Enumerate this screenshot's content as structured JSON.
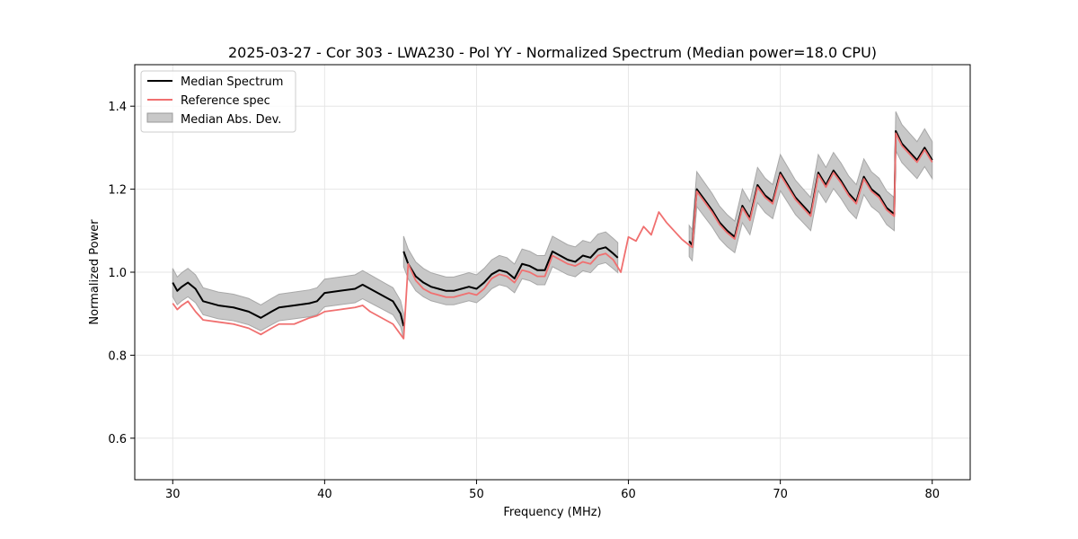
{
  "chart_data": {
    "type": "line",
    "title": "2025-03-27 - Cor 303 - LWA230 - Pol YY - Normalized Spectrum (Median power=18.0 CPU)",
    "xlabel": "Frequency (MHz)",
    "ylabel": "Normalized Power",
    "xlim": [
      27.5,
      82.5
    ],
    "ylim": [
      0.5,
      1.5
    ],
    "xticks": [
      30,
      40,
      50,
      60,
      70,
      80
    ],
    "yticks": [
      0.6,
      0.8,
      1.0,
      1.2,
      1.4
    ],
    "xtick_labels": [
      "30",
      "40",
      "50",
      "60",
      "70",
      "80"
    ],
    "ytick_labels": [
      "0.6",
      "0.8",
      "1.0",
      "1.2",
      "1.4"
    ],
    "grid": true,
    "legend_location": "upper-left",
    "legend": [
      {
        "label": "Median Spectrum",
        "kind": "line",
        "color": "#000000"
      },
      {
        "label": "Reference spec",
        "kind": "line",
        "color": "#f07070"
      },
      {
        "label": "Median Abs. Dev.",
        "kind": "fill",
        "color": "#c8c8c8"
      }
    ],
    "mad_fraction": 0.035,
    "series": [
      {
        "name": "Median Spectrum",
        "color": "#000000",
        "segments": [
          {
            "x": [
              30.0,
              30.3,
              30.6,
              31.0,
              31.5,
              32.0,
              33.0,
              34.0,
              35.0,
              35.8,
              36.5,
              37.0,
              38.0,
              39.0,
              39.5,
              40.0,
              41.0,
              42.0,
              42.5,
              43.0,
              44.0,
              44.5,
              45.0,
              45.2
            ],
            "y": [
              0.975,
              0.955,
              0.965,
              0.975,
              0.96,
              0.93,
              0.92,
              0.915,
              0.905,
              0.89,
              0.905,
              0.915,
              0.92,
              0.925,
              0.93,
              0.95,
              0.955,
              0.96,
              0.97,
              0.96,
              0.94,
              0.93,
              0.9,
              0.87
            ]
          },
          {
            "x": [
              45.2,
              45.5,
              46.0,
              46.5,
              47.0,
              47.5,
              48.0,
              48.5,
              49.0,
              49.5,
              50.0,
              50.5,
              51.0,
              51.5,
              52.0,
              52.5,
              53.0,
              53.5,
              54.0,
              54.5,
              55.0,
              55.5,
              56.0,
              56.5,
              57.0,
              57.5,
              58.0,
              58.5,
              59.0,
              59.3
            ],
            "y": [
              1.05,
              1.02,
              0.99,
              0.975,
              0.965,
              0.96,
              0.955,
              0.955,
              0.96,
              0.965,
              0.96,
              0.975,
              0.995,
              1.005,
              1.0,
              0.985,
              1.02,
              1.015,
              1.005,
              1.005,
              1.05,
              1.04,
              1.03,
              1.025,
              1.04,
              1.035,
              1.055,
              1.06,
              1.045,
              1.035
            ]
          },
          {
            "x": [
              64.0,
              64.2,
              64.5,
              65.0,
              65.5,
              66.0,
              66.5,
              67.0,
              67.5,
              68.0,
              68.5,
              69.0,
              69.5,
              70.0,
              70.5,
              71.0,
              71.5,
              72.0,
              72.5,
              73.0,
              73.5,
              74.0,
              74.5,
              75.0,
              75.5,
              76.0,
              76.5,
              77.0,
              77.5,
              77.6,
              78.0,
              78.5,
              79.0,
              79.5,
              80.0
            ],
            "y": [
              1.075,
              1.065,
              1.2,
              1.175,
              1.15,
              1.12,
              1.1,
              1.085,
              1.16,
              1.13,
              1.21,
              1.185,
              1.17,
              1.24,
              1.21,
              1.18,
              1.16,
              1.14,
              1.24,
              1.21,
              1.245,
              1.22,
              1.19,
              1.17,
              1.23,
              1.2,
              1.185,
              1.155,
              1.14,
              1.34,
              1.31,
              1.29,
              1.27,
              1.3,
              1.27
            ]
          }
        ]
      },
      {
        "name": "Reference spec",
        "color": "#f07070",
        "segments": [
          {
            "x": [
              30.0,
              30.3,
              30.6,
              31.0,
              31.5,
              32.0,
              33.0,
              34.0,
              35.0,
              35.8,
              36.5,
              37.0,
              38.0,
              39.0,
              39.5,
              40.0,
              41.0,
              42.0,
              42.5,
              43.0,
              44.0,
              44.5,
              45.0,
              45.2,
              45.5,
              46.0,
              46.5,
              47.0,
              47.5,
              48.0,
              48.5,
              49.0,
              49.5,
              50.0,
              50.5,
              51.0,
              51.5,
              52.0,
              52.5,
              53.0,
              53.5,
              54.0,
              54.5,
              55.0,
              55.5,
              56.0,
              56.5,
              57.0,
              57.5,
              58.0,
              58.5,
              59.0,
              59.5,
              60.0,
              60.5,
              61.0,
              61.5,
              62.0,
              62.5,
              63.0,
              63.5,
              64.0,
              64.2,
              64.5,
              65.0,
              65.5,
              66.0,
              66.5,
              67.0,
              67.5,
              68.0,
              68.5,
              69.0,
              69.5,
              70.0,
              70.5,
              71.0,
              71.5,
              72.0,
              72.5,
              73.0,
              73.5,
              74.0,
              74.5,
              75.0,
              75.5,
              76.0,
              76.5,
              77.0,
              77.5,
              77.6,
              78.0,
              78.5,
              79.0,
              79.5,
              80.0
            ],
            "y": [
              0.925,
              0.91,
              0.92,
              0.93,
              0.905,
              0.885,
              0.88,
              0.875,
              0.865,
              0.85,
              0.865,
              0.875,
              0.875,
              0.89,
              0.895,
              0.905,
              0.91,
              0.915,
              0.92,
              0.905,
              0.885,
              0.875,
              0.85,
              0.84,
              1.02,
              0.98,
              0.96,
              0.95,
              0.945,
              0.94,
              0.94,
              0.945,
              0.95,
              0.945,
              0.96,
              0.985,
              0.995,
              0.99,
              0.975,
              1.005,
              1.0,
              0.99,
              0.99,
              1.04,
              1.03,
              1.02,
              1.015,
              1.025,
              1.02,
              1.04,
              1.045,
              1.03,
              1.0,
              1.085,
              1.075,
              1.11,
              1.09,
              1.145,
              1.12,
              1.1,
              1.08,
              1.065,
              1.06,
              1.195,
              1.17,
              1.145,
              1.115,
              1.095,
              1.08,
              1.155,
              1.125,
              1.205,
              1.18,
              1.165,
              1.235,
              1.205,
              1.175,
              1.155,
              1.135,
              1.235,
              1.205,
              1.24,
              1.215,
              1.185,
              1.165,
              1.225,
              1.195,
              1.18,
              1.15,
              1.135,
              1.335,
              1.305,
              1.285,
              1.265,
              1.295,
              1.265
            ]
          }
        ]
      }
    ]
  }
}
